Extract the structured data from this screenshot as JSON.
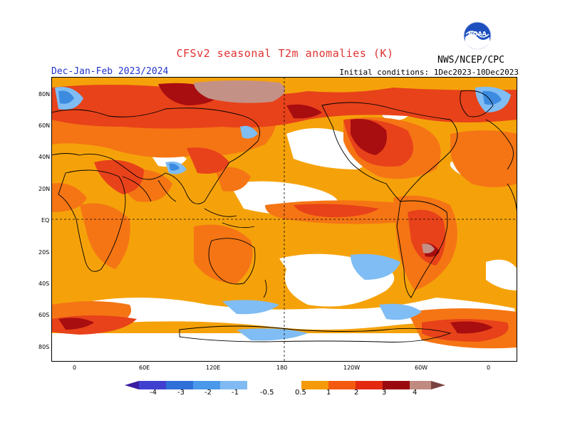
{
  "title": "CFSv2 seasonal T2m anomalies (K)",
  "season": "Dec-Jan-Feb 2023/2024",
  "initial_conditions": "Initial conditions: 1Dec2023-10Dec2023",
  "agency": "NWS/NCEP/CPC",
  "logo_text": "NOAA",
  "lat_labels": [
    "80N",
    "60N",
    "40N",
    "20N",
    "EQ",
    "20S",
    "40S",
    "60S",
    "80S"
  ],
  "lon_labels": [
    "0",
    "60E",
    "120E",
    "180",
    "120W",
    "60W",
    "0"
  ],
  "colorbar": {
    "labels": [
      "-4",
      "-3",
      "-2",
      "-1",
      "-0.5",
      "0.5",
      "1",
      "2",
      "3",
      "4"
    ],
    "colors": [
      "#3a1aa0",
      "#4040d0",
      "#2f6fd8",
      "#4a98ea",
      "#7fbbf2",
      "#ffffff",
      "#f59a0a",
      "#f35a10",
      "#e32a10",
      "#9a0810",
      "#c08a80",
      "#7a4440"
    ]
  },
  "palette": {
    "ocean_orange": "#f5a20a",
    "warm1": "#f57514",
    "warm2": "#e8421a",
    "hot": "#a80d10",
    "very_hot": "#c49186",
    "cool1": "#7fbdf4",
    "cool2": "#3c8be0",
    "neutral": "#ffffff"
  }
}
